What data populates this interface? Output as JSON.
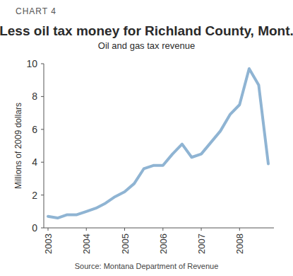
{
  "chart_data": {
    "type": "line",
    "title": "Less oil tax money for Richland County, Mont.",
    "subtitle": "Oil and gas tax revenue",
    "y_label": "Millions of 2009 dollars",
    "annotations": [
      "CHART 4",
      "Source: Montana Department of Revenue"
    ],
    "categories": [
      "2003",
      null,
      null,
      null,
      "2004",
      null,
      null,
      null,
      "2005",
      null,
      null,
      null,
      "2006",
      null,
      null,
      null,
      "2007",
      null,
      null,
      null,
      "2008",
      null,
      null,
      null
    ],
    "values": [
      0.7,
      0.6,
      0.8,
      0.8,
      1.0,
      1.2,
      1.5,
      1.9,
      2.2,
      2.7,
      3.6,
      3.8,
      3.8,
      4.5,
      5.1,
      4.3,
      4.5,
      5.2,
      5.9,
      6.9,
      7.5,
      9.7,
      8.7,
      3.9
    ],
    "color": "#8fb4d3",
    "ylim": [
      0,
      10
    ],
    "yticks": [
      0,
      2,
      4,
      6,
      8,
      10
    ],
    "grid": false
  }
}
